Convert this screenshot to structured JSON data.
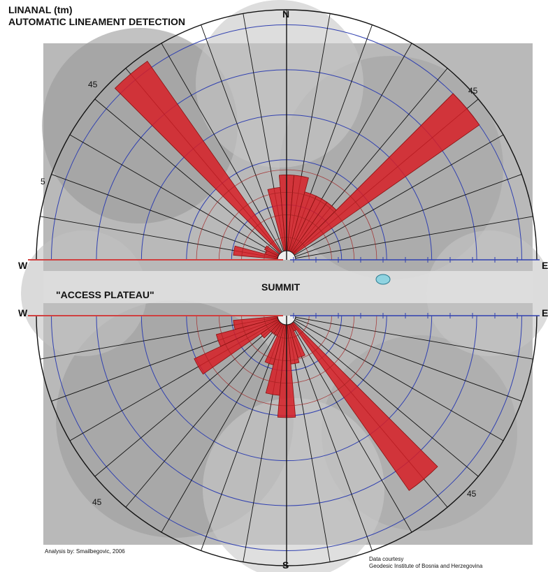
{
  "header": {
    "line1": "LINANAL (tm)",
    "line2": "AUTOMATIC LINEAMENT DETECTION"
  },
  "compass": {
    "n": "N",
    "s": "S",
    "w_upper": "W",
    "e_upper": "E",
    "w_lower": "W",
    "e_lower": "E"
  },
  "labels": {
    "access": "\"ACCESS PLATEAU\"",
    "summit": "SUMMIT",
    "deg_nw": "45",
    "deg_ne": "45",
    "deg_sw": "45",
    "deg_se": "45",
    "deg_w": "5"
  },
  "footer": {
    "analysis": "Analysis by: Smailbegovic, 2006",
    "courtesy1": "Data courtesy",
    "courtesy2": "Geodesic Institute of Bosnia and Herzegovina"
  },
  "colors": {
    "petal": "#d71f26",
    "blue_ring": "#3040b0",
    "red_ring": "#a02020",
    "spoke": "#111111",
    "axis_red": "#d04040"
  },
  "chart_data": [
    {
      "type": "rose",
      "name": "upper",
      "angle_step_deg": 10,
      "directions_deg": [
        -90,
        -80,
        -70,
        -60,
        -50,
        -40,
        -30,
        -20,
        -10,
        0,
        10,
        20,
        30,
        40,
        50,
        60,
        70,
        80,
        90
      ],
      "values": [
        0,
        0.22,
        0.09,
        0.1,
        0,
        1.0,
        0,
        0,
        0.3,
        0.35,
        0.35,
        0.29,
        0.29,
        0.29,
        0.97,
        0,
        0,
        0,
        0
      ],
      "petal_width_deg": 10
    },
    {
      "type": "rose",
      "name": "lower",
      "angle_step_deg": 10,
      "directions_deg": [
        -90,
        -80,
        -70,
        -60,
        -50,
        -40,
        -30,
        -20,
        -10,
        0,
        10,
        20,
        30,
        40,
        50,
        60,
        70,
        80,
        90
      ],
      "values": [
        0,
        0.22,
        0.3,
        0.42,
        0.13,
        0.09,
        0.09,
        0.21,
        0.33,
        0.42,
        0.2,
        0.18,
        0.07,
        0.88,
        0,
        0,
        0,
        0,
        0
      ],
      "petal_width_deg": 10
    }
  ]
}
